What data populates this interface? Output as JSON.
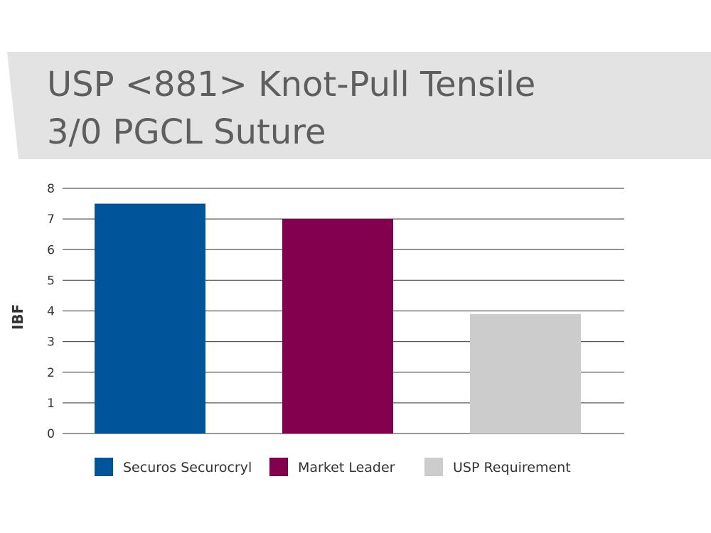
{
  "chart_data": {
    "type": "bar",
    "title": [
      "USP <881> Knot-Pull Tensile",
      "3/0 PGCL Suture"
    ],
    "ylabel": "IBF",
    "xlabel": "",
    "ylim": [
      0,
      8
    ],
    "yticks": [
      0,
      1,
      2,
      3,
      4,
      5,
      6,
      7,
      8
    ],
    "grid": true,
    "legend_position": "bottom",
    "series": [
      {
        "name": "Securos Securocryl",
        "value": 7.5,
        "color": "#00549a"
      },
      {
        "name": "Market Leader",
        "value": 7.0,
        "color": "#83004e"
      },
      {
        "name": "USP Requirement",
        "value": 3.9,
        "color": "#cccccd"
      }
    ]
  },
  "colors": {
    "title_band": "#e3e3e3",
    "title_text": "#5e5e5e",
    "grid": "#595959"
  }
}
